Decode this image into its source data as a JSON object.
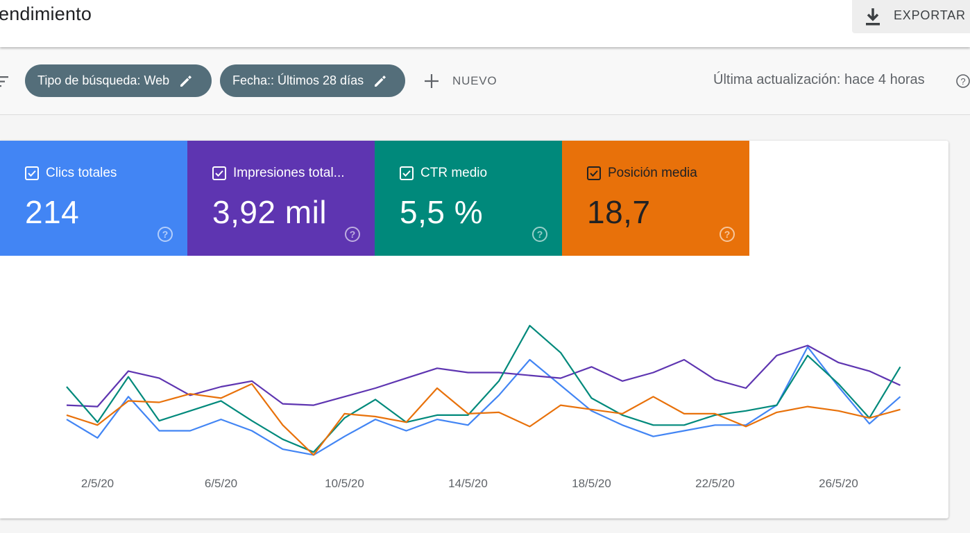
{
  "header": {
    "title": "endimiento",
    "export_label": "EXPORTAR"
  },
  "filters": {
    "chips": [
      {
        "label": "Tipo de búsqueda: Web"
      },
      {
        "label": "Fecha:: Últimos 28 días"
      }
    ],
    "new_label": "NUEVO",
    "last_update": "Última actualización: hace 4 horas"
  },
  "metrics": [
    {
      "label": "Clics totales",
      "value": "214",
      "color": "#4285f4"
    },
    {
      "label": "Impresiones total...",
      "value": "3,92 mil",
      "color": "#5e35b1"
    },
    {
      "label": "CTR medio",
      "value": "5,5 %",
      "color": "#00897b"
    },
    {
      "label": "Posición media",
      "value": "18,7",
      "color": "#e8710a"
    }
  ],
  "chart_data": {
    "type": "line",
    "x": [
      "1/5/20",
      "2/5/20",
      "3/5/20",
      "4/5/20",
      "5/5/20",
      "6/5/20",
      "7/5/20",
      "8/5/20",
      "9/5/20",
      "10/5/20",
      "11/5/20",
      "12/5/20",
      "13/5/20",
      "14/5/20",
      "15/5/20",
      "16/5/20",
      "17/5/20",
      "18/5/20",
      "19/5/20",
      "20/5/20",
      "21/5/20",
      "22/5/20",
      "23/5/20",
      "24/5/20",
      "25/5/20",
      "26/5/20",
      "27/5/20",
      "28/5/20"
    ],
    "x_tick_labels": [
      "2/5/20",
      "6/5/20",
      "10/5/20",
      "14/5/20",
      "18/5/20",
      "22/5/20",
      "26/5/20"
    ],
    "x_tick_index": [
      1,
      5,
      9,
      13,
      17,
      21,
      25
    ],
    "grid": false,
    "legend": "none",
    "ylim": [
      0,
      100
    ],
    "series": [
      {
        "color": "#4285f4",
        "values": [
          38,
          25,
          54,
          30,
          30,
          38,
          30,
          17,
          13,
          26,
          38,
          30,
          38,
          34,
          55,
          80,
          62,
          44,
          34,
          26,
          30,
          34,
          34,
          48,
          89,
          61,
          35,
          54
        ]
      },
      {
        "color": "#5e35b1",
        "values": [
          48,
          47,
          72,
          67,
          55,
          61,
          65,
          49,
          48,
          54,
          60,
          67,
          74,
          71,
          71,
          69,
          67,
          75,
          65,
          71,
          80,
          66,
          60,
          83,
          90,
          78,
          72,
          62
        ]
      },
      {
        "color": "#00897b",
        "values": [
          61,
          36,
          68,
          37,
          44,
          51,
          37,
          24,
          15,
          39,
          52,
          36,
          41,
          41,
          65,
          104,
          85,
          53,
          41,
          34,
          34,
          41,
          44,
          48,
          83,
          63,
          39,
          75
        ]
      },
      {
        "color": "#e8710a",
        "values": [
          41,
          34,
          51,
          50,
          56,
          53,
          63,
          34,
          13,
          42,
          40,
          36,
          60,
          42,
          43,
          33,
          48,
          45,
          42,
          54,
          42,
          42,
          33,
          43,
          47,
          44,
          39,
          45
        ]
      }
    ]
  }
}
